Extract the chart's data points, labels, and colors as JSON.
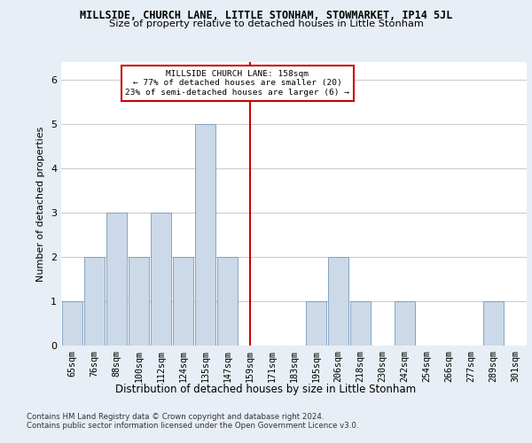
{
  "title": "MILLSIDE, CHURCH LANE, LITTLE STONHAM, STOWMARKET, IP14 5JL",
  "subtitle": "Size of property relative to detached houses in Little Stonham",
  "xlabel_bottom": "Distribution of detached houses by size in Little Stonham",
  "ylabel": "Number of detached properties",
  "categories": [
    "65sqm",
    "76sqm",
    "88sqm",
    "100sqm",
    "112sqm",
    "124sqm",
    "135sqm",
    "147sqm",
    "159sqm",
    "171sqm",
    "183sqm",
    "195sqm",
    "206sqm",
    "218sqm",
    "230sqm",
    "242sqm",
    "254sqm",
    "266sqm",
    "277sqm",
    "289sqm",
    "301sqm"
  ],
  "values": [
    1,
    2,
    3,
    2,
    3,
    2,
    5,
    2,
    0,
    0,
    0,
    1,
    2,
    1,
    0,
    1,
    0,
    0,
    0,
    1,
    0
  ],
  "bar_color": "#ccd9e8",
  "bar_edge_color": "#7799bb",
  "reference_line_index": 8,
  "reference_line_color": "#cc0000",
  "annotation_title": "MILLSIDE CHURCH LANE: 158sqm",
  "annotation_line1": "← 77% of detached houses are smaller (20)",
  "annotation_line2": "23% of semi-detached houses are larger (6) →",
  "annotation_box_color": "#ffffff",
  "annotation_box_edge_color": "#cc0000",
  "ylim": [
    0,
    6.4
  ],
  "yticks": [
    0,
    1,
    2,
    3,
    4,
    5,
    6
  ],
  "footer1": "Contains HM Land Registry data © Crown copyright and database right 2024.",
  "footer2": "Contains public sector information licensed under the Open Government Licence v3.0.",
  "background_color": "#e8eef5",
  "plot_background_color": "#ffffff"
}
